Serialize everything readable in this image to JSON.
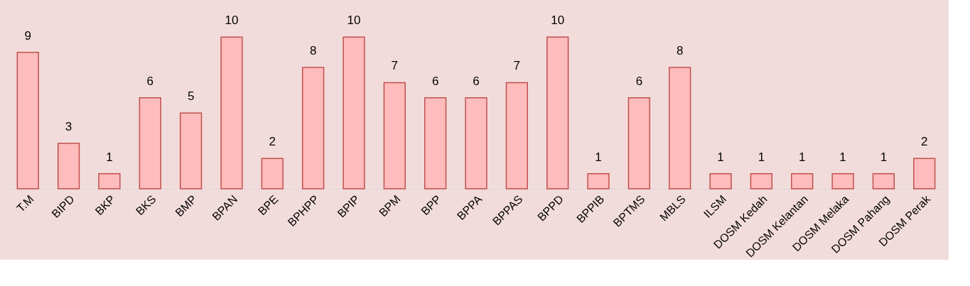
{
  "chart_data": {
    "type": "bar",
    "categories": [
      "T.M",
      "BIPD",
      "BKP",
      "BKS",
      "BMP",
      "BPAN",
      "BPE",
      "BPHPP",
      "BPIP",
      "BPM",
      "BPP",
      "BPPA",
      "BPPAS",
      "BPPD",
      "BPPIB",
      "BPTMS",
      "MBLS",
      "ILSM",
      "DOSM Kedah",
      "DOSM Kelantan",
      "DOSM Melaka",
      "DOSM Pahang",
      "DOSM Perak"
    ],
    "values": [
      9,
      3,
      1,
      6,
      5,
      10,
      2,
      8,
      10,
      7,
      6,
      6,
      7,
      10,
      1,
      6,
      8,
      1,
      1,
      1,
      1,
      1,
      2
    ],
    "color": "#ffbcbc",
    "data_labels": true
  }
}
